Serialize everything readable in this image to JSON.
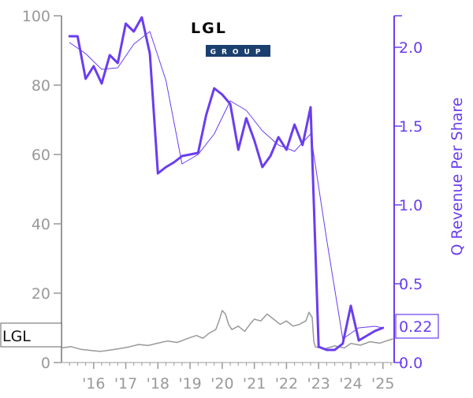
{
  "logo": {
    "name": "LGL",
    "sub": "GROUP",
    "color": "#1b3f6e"
  },
  "price_label": {
    "text": "LGL"
  },
  "revenue_label": {
    "text": "0.22"
  },
  "chart_data": {
    "type": "line",
    "title": "",
    "xlabel": "",
    "ylabel_left": "",
    "ylabel_right": "Q Revenue Per Share",
    "x_ticks": [
      "'16",
      "'17",
      "'18",
      "'19",
      "'20",
      "'21",
      "'22",
      "'23",
      "'24",
      "'25"
    ],
    "x_tick_years": [
      2016,
      2017,
      2018,
      2019,
      2020,
      2021,
      2022,
      2023,
      2024,
      2025
    ],
    "xlim": [
      2015.0,
      2025.35
    ],
    "y_left": {
      "ticks": [
        0,
        20,
        40,
        60,
        80,
        100
      ],
      "lim": [
        0,
        100
      ]
    },
    "y_right": {
      "ticks": [
        0.0,
        0.5,
        1.0,
        1.5,
        2.0
      ],
      "tick_labels": [
        "0.0",
        "0.5",
        "1.0",
        "1.5",
        "2.0"
      ],
      "lim": [
        0,
        2.2
      ]
    },
    "colors": {
      "revenue": "#6a3df0",
      "price": "#999999",
      "axis_left": "#999999"
    },
    "series": [
      {
        "name": "Q Revenue Per Share",
        "axis": "right",
        "style": "thick",
        "x": [
          2015.25,
          2015.5,
          2015.75,
          2016.0,
          2016.25,
          2016.5,
          2016.75,
          2017.0,
          2017.25,
          2017.5,
          2017.75,
          2018.0,
          2018.25,
          2018.5,
          2018.75,
          2019.0,
          2019.25,
          2019.5,
          2019.75,
          2020.0,
          2020.25,
          2020.5,
          2020.75,
          2021.0,
          2021.25,
          2021.5,
          2021.75,
          2022.0,
          2022.25,
          2022.5,
          2022.75,
          2023.0,
          2023.25,
          2023.5,
          2023.75,
          2024.0,
          2024.25,
          2024.5,
          2024.75,
          2025.0
        ],
        "values": [
          2.07,
          2.07,
          1.8,
          1.88,
          1.77,
          1.95,
          1.9,
          2.15,
          2.1,
          2.19,
          1.96,
          1.2,
          1.24,
          1.27,
          1.31,
          1.32,
          1.33,
          1.57,
          1.74,
          1.7,
          1.64,
          1.35,
          1.55,
          1.41,
          1.24,
          1.31,
          1.43,
          1.35,
          1.51,
          1.38,
          1.62,
          0.1,
          0.08,
          0.08,
          0.12,
          0.36,
          0.14,
          0.17,
          0.2,
          0.22
        ]
      },
      {
        "name": "",
        "axis": "right",
        "style": "thin",
        "x": [
          2015.25,
          2015.75,
          2016.25,
          2016.75,
          2017.25,
          2017.75,
          2018.25,
          2018.75,
          2019.25,
          2019.75,
          2020.25,
          2020.75,
          2021.25,
          2021.75,
          2022.25,
          2022.75,
          2023.25,
          2023.75,
          2024.25,
          2024.75,
          2025.0
        ],
        "values": [
          2.03,
          1.96,
          1.86,
          1.87,
          2.02,
          2.1,
          1.79,
          1.26,
          1.32,
          1.45,
          1.66,
          1.6,
          1.47,
          1.38,
          1.34,
          1.45,
          0.78,
          0.15,
          0.22,
          0.23,
          0.22
        ]
      },
      {
        "name": "LGL",
        "axis": "left",
        "style": "price",
        "x": [
          2015.0,
          2015.3,
          2015.6,
          2015.9,
          2016.2,
          2016.5,
          2016.8,
          2017.1,
          2017.4,
          2017.7,
          2018.0,
          2018.3,
          2018.6,
          2018.8,
          2019.0,
          2019.2,
          2019.4,
          2019.6,
          2019.8,
          2019.9,
          2020.0,
          2020.1,
          2020.2,
          2020.3,
          2020.5,
          2020.7,
          2020.9,
          2021.0,
          2021.2,
          2021.4,
          2021.6,
          2021.8,
          2022.0,
          2022.2,
          2022.4,
          2022.6,
          2022.7,
          2022.8,
          2022.85,
          2022.9,
          2023.2,
          2023.5,
          2023.8,
          2024.0,
          2024.3,
          2024.6,
          2024.9,
          2025.1,
          2025.3
        ],
        "values": [
          4.2,
          4.6,
          3.8,
          3.5,
          3.2,
          3.6,
          4.0,
          4.5,
          5.2,
          4.9,
          5.6,
          6.2,
          5.8,
          6.5,
          7.2,
          7.8,
          7.0,
          8.5,
          9.5,
          12.0,
          15.0,
          14.0,
          11.0,
          9.5,
          10.5,
          9.0,
          11.5,
          12.5,
          12.0,
          14.0,
          12.5,
          11.0,
          12.0,
          10.5,
          11.0,
          12.0,
          14.5,
          13.0,
          6.0,
          4.5,
          4.0,
          4.8,
          4.2,
          5.5,
          5.0,
          6.0,
          5.6,
          6.2,
          6.8
        ]
      }
    ]
  }
}
